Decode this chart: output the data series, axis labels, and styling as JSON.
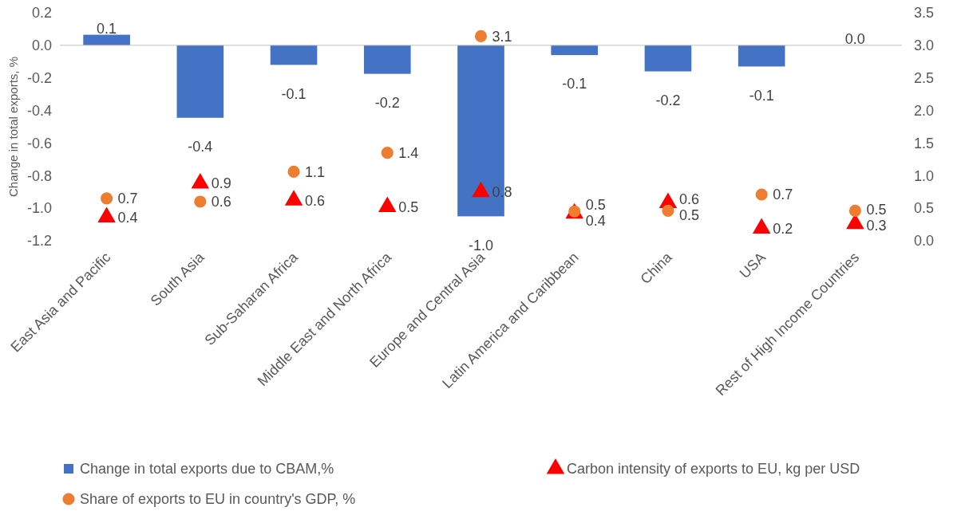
{
  "chart_data": {
    "type": "bar",
    "ylabel": "Change in total exports, %",
    "categories": [
      "East Asia and Pacific",
      "South Asia",
      "Sub-Saharan Africa",
      "Middle East and North Africa",
      "Europe and Central Asia",
      "Latin America and Caribbean",
      "China",
      "USA",
      "Rest of High Income Countries"
    ],
    "series": [
      {
        "name": "Change in total exports due to CBAM,%",
        "color": "#4472c4",
        "values": [
          0.065,
          -0.445,
          -0.12,
          -0.175,
          -1.05,
          -0.06,
          -0.16,
          -0.13,
          0.0
        ],
        "value_labels": [
          "0.1",
          "-0.4",
          "-0.1",
          "-0.2",
          "-1.0",
          "-0.1",
          "-0.2",
          "-0.1",
          "0.0"
        ]
      },
      {
        "name": "Carbon intensity of exports to EU, kg per USD",
        "type": "scatter",
        "axis": "y2",
        "marker": "triangle",
        "color": "#ff0000",
        "values": [
          0.36,
          0.88,
          0.62,
          0.52,
          0.75,
          0.42,
          0.58,
          0.19,
          0.26
        ],
        "value_labels": [
          "0.4",
          "0.9",
          "0.6",
          "0.5",
          "0.8",
          "0.4",
          "0.6",
          "0.2",
          "0.3"
        ]
      },
      {
        "name": "Share of exports to EU in country's GDP, %",
        "type": "scatter",
        "axis": "y2",
        "marker": "circle",
        "color": "#ed7d31",
        "values": [
          0.65,
          0.6,
          1.06,
          1.35,
          3.14,
          0.45,
          0.46,
          0.71,
          0.46
        ],
        "value_labels": [
          "0.7",
          "0.6",
          "1.1",
          "1.4",
          "3.1",
          "0.5",
          "0.5",
          "0.7",
          "0.5"
        ]
      }
    ],
    "ylim": [
      -1.2,
      0.2
    ],
    "yticks": [
      {
        "value": -1.2,
        "label": "-1.2"
      },
      {
        "value": -1,
        "label": "-1.0"
      },
      {
        "value": -0.8,
        "label": "-0.8"
      },
      {
        "value": -0.6,
        "label": "-0.6"
      },
      {
        "value": -0.4,
        "label": "-0.4"
      },
      {
        "value": -0.2,
        "label": "-0.2"
      },
      {
        "value": 0,
        "label": "0.0"
      },
      {
        "value": 0.2,
        "label": "0.2"
      }
    ],
    "y2lim": [
      0,
      3.5
    ],
    "y2ticks": [
      {
        "value": 0,
        "label": "0.0"
      },
      {
        "value": 0.5,
        "label": "0.5"
      },
      {
        "value": 1,
        "label": "1.0"
      },
      {
        "value": 1.5,
        "label": "1.5"
      },
      {
        "value": 2,
        "label": "2.0"
      },
      {
        "value": 2.5,
        "label": "2.5"
      },
      {
        "value": 3,
        "label": "3.0"
      },
      {
        "value": 3.5,
        "label": "3.5"
      }
    ],
    "ref_lines": [
      {
        "axis": "y",
        "value": 0,
        "color": "#bfbfbf"
      }
    ],
    "grid": false,
    "legend": "bottom"
  }
}
